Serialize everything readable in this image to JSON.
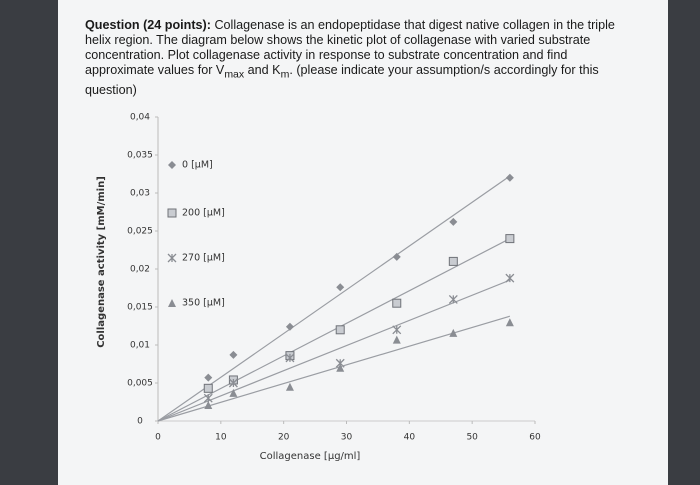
{
  "question": {
    "label": "Question (24 points):",
    "text1": "Collagenase is an endopeptidase that digest native collagen in the triple helix region. The diagram below shows the kinetic plot of collagenase with varied substrate concentration. Plot collagenase activity in response to substrate concentration and find approximate values for V",
    "sub1": "max",
    "text2": " and K",
    "sub2": "m",
    "text3": ". (please indicate your assumption/s accordingly for this question)"
  },
  "chart_data": {
    "type": "scatter",
    "x_label": "Collagenase [µg/ml]",
    "y_label": "Collagenase activity [mM/min]",
    "xlim": [
      0,
      60
    ],
    "xticks": [
      0,
      10,
      20,
      30,
      40,
      50,
      60
    ],
    "ylim": [
      0,
      0.04
    ],
    "yticks": [
      0,
      {
        "value": 0.005,
        "label": "0,005"
      },
      {
        "value": 0.01,
        "label": "0,01"
      },
      {
        "value": 0.015,
        "label": "0,015"
      },
      {
        "value": 0.02,
        "label": "0,02"
      },
      {
        "value": 0.025,
        "label": "0,025"
      },
      {
        "value": 0.03,
        "label": "0,03"
      },
      {
        "value": 0.035,
        "label": "0,035"
      },
      {
        "value": 0.04,
        "label": "0,04"
      }
    ],
    "legend": "left",
    "trendline": true,
    "x": [
      8,
      12,
      21,
      29,
      38,
      47,
      56
    ],
    "series": [
      {
        "name": "0  [µM]",
        "marker": "diamond",
        "color": "#8a8d93",
        "values": [
          0.0057,
          0.0087,
          0.0124,
          0.0176,
          0.0216,
          0.0262,
          0.032
        ]
      },
      {
        "name": "200  [µM]",
        "marker": "square",
        "color": "#8a8d93",
        "values": [
          0.0043,
          0.0054,
          0.0086,
          0.012,
          0.0155,
          0.021,
          0.024
        ]
      },
      {
        "name": "270  [µM]",
        "marker": "cross",
        "color": "#8a8d93",
        "values": [
          0.003,
          0.005,
          0.0083,
          0.0076,
          0.012,
          0.016,
          0.0188
        ]
      },
      {
        "name": "350  [µM]",
        "marker": "triangle",
        "color": "#8a8d93",
        "values": [
          0.0021,
          0.0037,
          0.0045,
          0.007,
          0.0107,
          0.0116,
          0.013
        ]
      }
    ]
  }
}
